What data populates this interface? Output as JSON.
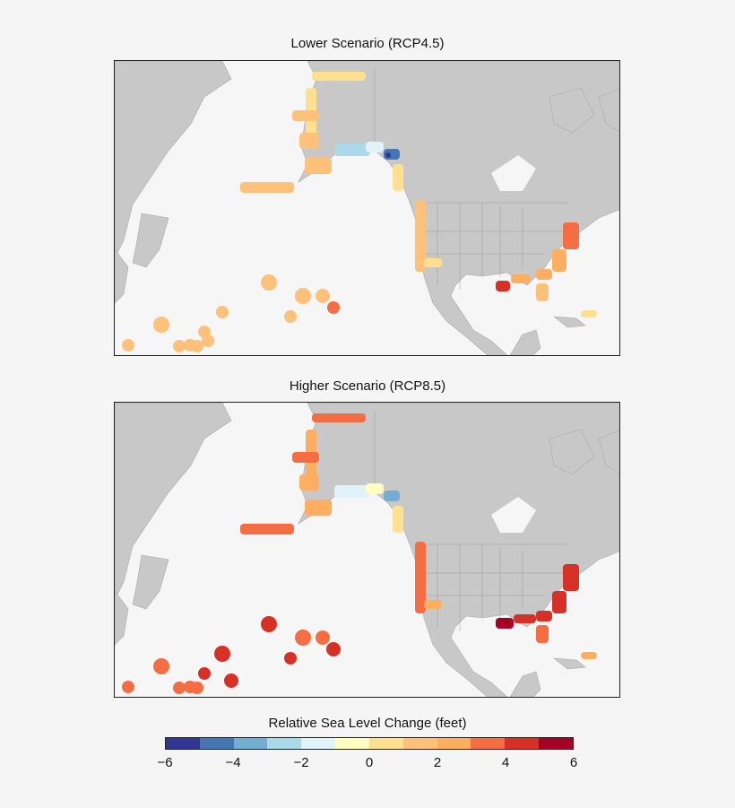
{
  "panels": [
    {
      "title": "Lower Scenario (RCP4.5)"
    },
    {
      "title": "Higher Scenario (RCP8.5)"
    }
  ],
  "legend": {
    "title": "Relative Sea Level Change (feet)",
    "ticks": [
      "−6",
      "−4",
      "−2",
      "0",
      "2",
      "4",
      "6"
    ],
    "colors": [
      "#313695",
      "#4575b4",
      "#74add1",
      "#abd9e9",
      "#e0f3f8",
      "#ffffbf",
      "#fee090",
      "#fdc17a",
      "#fdae61",
      "#f46d43",
      "#d73027",
      "#a50026"
    ]
  },
  "colors": {
    "land": "#c8c8c8",
    "borders": "#9a9a9a",
    "ocean": "#f6f6f6"
  }
}
